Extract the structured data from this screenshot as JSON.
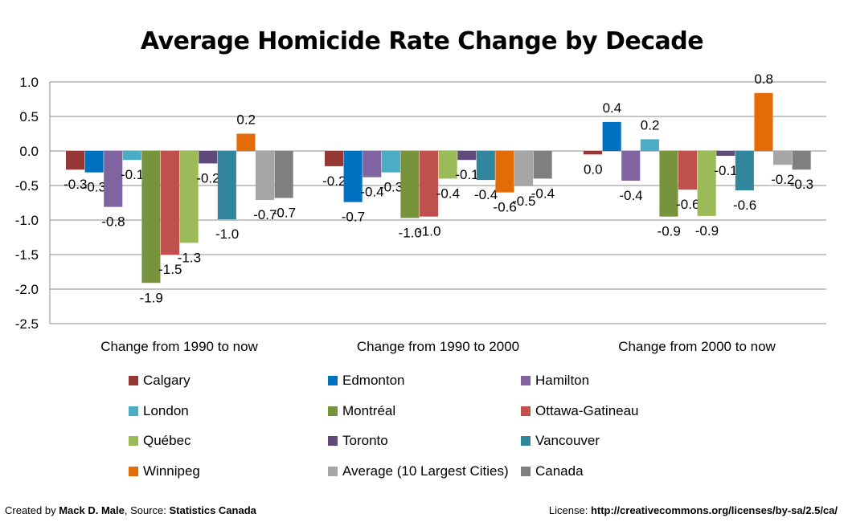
{
  "chart_data": {
    "type": "bar",
    "title": "Average Homicide Rate Change by Decade",
    "xlabel": "",
    "ylabel": "",
    "ylim": [
      -2.5,
      1.0
    ],
    "yticks": [
      "1.0",
      "0.5",
      "0.0",
      "-0.5",
      "-1.0",
      "-1.5",
      "-2.0",
      "-2.5"
    ],
    "ytick_values": [
      1.0,
      0.5,
      0.0,
      -0.5,
      -1.0,
      -1.5,
      -2.0,
      -2.5
    ],
    "grid": true,
    "legend_placement": "bottom",
    "categories": [
      "Change from 1990 to now",
      "Change from 1990 to 2000",
      "Change from 2000 to now"
    ],
    "series": [
      {
        "name": "Calgary",
        "color": "#953735",
        "values": [
          -0.27,
          -0.22,
          -0.05
        ],
        "labels": [
          "-0.3",
          "-0.2",
          "0.0"
        ]
      },
      {
        "name": "Edmonton",
        "color": "#0070c0",
        "values": [
          -0.31,
          -0.74,
          0.42
        ],
        "labels": [
          "-0.3",
          "-0.7",
          "0.4"
        ]
      },
      {
        "name": "Hamilton",
        "color": "#8064a2",
        "values": [
          -0.81,
          -0.38,
          -0.43
        ],
        "labels": [
          "-0.8",
          "-0.4",
          "-0.4"
        ]
      },
      {
        "name": "London",
        "color": "#4bacc6",
        "values": [
          -0.13,
          -0.31,
          0.17
        ],
        "labels": [
          "-0.1",
          "-0.3",
          "0.2"
        ]
      },
      {
        "name": "Montréal",
        "color": "#77933c",
        "values": [
          -1.91,
          -0.97,
          -0.95
        ],
        "labels": [
          "-1.9",
          "-1.0",
          "-0.9"
        ]
      },
      {
        "name": "Ottawa-Gatineau",
        "color": "#c0504d",
        "values": [
          -1.5,
          -0.95,
          -0.56
        ],
        "labels": [
          "-1.5",
          "-1.0",
          "-0.6"
        ]
      },
      {
        "name": "Québec",
        "color": "#9bbb59",
        "values": [
          -1.33,
          -0.4,
          -0.94
        ],
        "labels": [
          "-1.3",
          "-0.4",
          "-0.9"
        ]
      },
      {
        "name": "Toronto",
        "color": "#604a7b",
        "values": [
          -0.18,
          -0.13,
          -0.07
        ],
        "labels": [
          "-0.2",
          "-0.1",
          "-0.1"
        ]
      },
      {
        "name": "Vancouver",
        "color": "#31859c",
        "values": [
          -0.99,
          -0.42,
          -0.57
        ],
        "labels": [
          "-1.0",
          "-0.4",
          "-0.6"
        ]
      },
      {
        "name": "Winnipeg",
        "color": "#e36c09",
        "values": [
          0.25,
          -0.6,
          0.84
        ],
        "labels": [
          "0.2",
          "-0.6",
          "0.8"
        ]
      },
      {
        "name": "Average (10 Largest Cities)",
        "color": "#a6a6a6",
        "values": [
          -0.71,
          -0.51,
          -0.2
        ],
        "labels": [
          "-0.7",
          "-0.5",
          "-0.2"
        ]
      },
      {
        "name": "Canada",
        "color": "#7f7f7f",
        "values": [
          -0.68,
          -0.4,
          -0.27
        ],
        "labels": [
          "-0.7",
          "-0.4",
          "-0.3"
        ]
      }
    ]
  },
  "footer": {
    "created_prefix": "Created by ",
    "author": "Mack D. Male",
    "source_prefix": ", Source: ",
    "source": "Statistics Canada",
    "license_prefix": "License: ",
    "license_url": "http://creativecommons.org/licenses/by-sa/2.5/ca/"
  }
}
